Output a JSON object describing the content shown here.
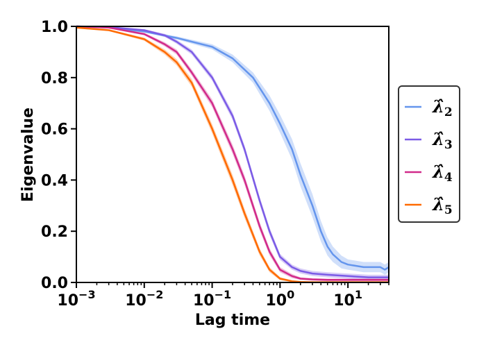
{
  "chart_data": {
    "type": "line",
    "title": "",
    "xlabel": "Lag time",
    "ylabel": "Eigenvalue",
    "xscale": "log",
    "xlim": [
      0.001,
      40
    ],
    "ylim": [
      0.0,
      1.0
    ],
    "grid": false,
    "legend_position": "right-outside",
    "x_ticks": [
      {
        "value": 0.001,
        "base": "10",
        "exp": "−3"
      },
      {
        "value": 0.01,
        "base": "10",
        "exp": "−2"
      },
      {
        "value": 0.1,
        "base": "10",
        "exp": "−1"
      },
      {
        "value": 1,
        "base": "10",
        "exp": "0"
      },
      {
        "value": 10,
        "base": "10",
        "exp": "1"
      }
    ],
    "y_ticks": [
      {
        "value": 0.0,
        "label": "0.0"
      },
      {
        "value": 0.2,
        "label": "0.2"
      },
      {
        "value": 0.4,
        "label": "0.4"
      },
      {
        "value": 0.6,
        "label": "0.6"
      },
      {
        "value": 0.8,
        "label": "0.8"
      },
      {
        "value": 1.0,
        "label": "1.0"
      }
    ],
    "series": [
      {
        "name": "λ̂",
        "subscript": "2",
        "color": "#6495ED",
        "x": [
          0.001,
          0.003,
          0.01,
          0.03,
          0.1,
          0.2,
          0.4,
          0.7,
          1.0,
          1.5,
          2.0,
          3.0,
          4.0,
          5.0,
          6.0,
          8.0,
          10.0,
          13.0,
          17.0,
          20.0,
          25.0,
          30.0,
          35.0,
          40.0
        ],
        "y": [
          1.0,
          0.995,
          0.98,
          0.955,
          0.92,
          0.875,
          0.8,
          0.7,
          0.62,
          0.52,
          0.42,
          0.3,
          0.2,
          0.14,
          0.11,
          0.08,
          0.07,
          0.065,
          0.06,
          0.06,
          0.06,
          0.06,
          0.05,
          0.06
        ],
        "band": [
          0.0,
          0.002,
          0.004,
          0.006,
          0.01,
          0.015,
          0.02,
          0.03,
          0.035,
          0.04,
          0.045,
          0.045,
          0.04,
          0.035,
          0.03,
          0.025,
          0.02,
          0.02,
          0.02,
          0.02,
          0.02,
          0.02,
          0.02,
          0.02
        ]
      },
      {
        "name": "λ̂",
        "subscript": "3",
        "color": "#7B5BE6",
        "x": [
          0.001,
          0.003,
          0.01,
          0.02,
          0.03,
          0.05,
          0.1,
          0.2,
          0.3,
          0.5,
          0.7,
          1.0,
          1.5,
          2.0,
          3.0,
          5.0,
          10.0,
          20.0,
          40.0
        ],
        "y": [
          1.0,
          0.997,
          0.985,
          0.965,
          0.94,
          0.9,
          0.8,
          0.65,
          0.52,
          0.32,
          0.2,
          0.1,
          0.06,
          0.045,
          0.035,
          0.03,
          0.025,
          0.02,
          0.02
        ],
        "band": [
          0.0,
          0.002,
          0.004,
          0.006,
          0.008,
          0.01,
          0.012,
          0.015,
          0.015,
          0.015,
          0.015,
          0.012,
          0.01,
          0.01,
          0.01,
          0.01,
          0.01,
          0.01,
          0.01
        ]
      },
      {
        "name": "λ̂",
        "subscript": "4",
        "color": "#D12A8A",
        "x": [
          0.001,
          0.003,
          0.01,
          0.02,
          0.03,
          0.05,
          0.1,
          0.2,
          0.3,
          0.5,
          0.7,
          1.0,
          1.5,
          2.0,
          3.0,
          5.0,
          10.0,
          20.0,
          40.0
        ],
        "y": [
          1.0,
          0.995,
          0.97,
          0.93,
          0.9,
          0.82,
          0.7,
          0.52,
          0.4,
          0.22,
          0.12,
          0.05,
          0.025,
          0.015,
          0.012,
          0.01,
          0.01,
          0.01,
          0.01
        ],
        "band": [
          0.0,
          0.002,
          0.005,
          0.008,
          0.01,
          0.012,
          0.015,
          0.018,
          0.018,
          0.016,
          0.014,
          0.01,
          0.008,
          0.005,
          0.005,
          0.005,
          0.005,
          0.005,
          0.005
        ]
      },
      {
        "name": "λ̂",
        "subscript": "5",
        "color": "#FF6A00",
        "x": [
          0.001,
          0.003,
          0.01,
          0.02,
          0.03,
          0.05,
          0.1,
          0.2,
          0.3,
          0.5,
          0.7,
          1.0,
          1.5,
          2.0,
          3.0,
          5.0,
          10.0,
          20.0,
          40.0
        ],
        "y": [
          0.995,
          0.985,
          0.95,
          0.9,
          0.86,
          0.78,
          0.6,
          0.4,
          0.27,
          0.12,
          0.05,
          0.015,
          0.005,
          0.002,
          0.001,
          0.001,
          0.001,
          0.001,
          0.001
        ],
        "band": [
          0.0,
          0.003,
          0.006,
          0.01,
          0.012,
          0.015,
          0.018,
          0.02,
          0.018,
          0.014,
          0.01,
          0.006,
          0.003,
          0.002,
          0.001,
          0.001,
          0.001,
          0.001,
          0.001
        ]
      }
    ]
  }
}
